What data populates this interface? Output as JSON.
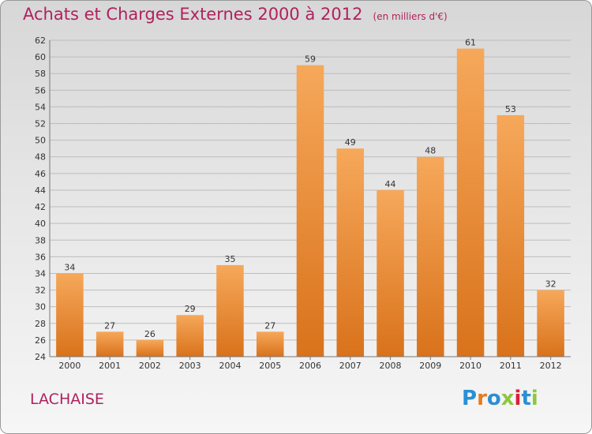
{
  "header": {
    "title": "Achats et Charges Externes 2000 à 2012",
    "subtitle": "(en milliers d'€)"
  },
  "footer": {
    "commune": "LACHAISE",
    "brand": "Proxiti"
  },
  "colors": {
    "title": "#b0225c",
    "bar_top": "#f6a85a",
    "bar_bottom": "#d9721b"
  },
  "chart_data": {
    "type": "bar",
    "title": "Achats et Charges Externes 2000 à 2012",
    "subtitle": "(en milliers d'€)",
    "categories": [
      "2000",
      "2001",
      "2002",
      "2003",
      "2004",
      "2005",
      "2006",
      "2007",
      "2008",
      "2009",
      "2010",
      "2011",
      "2012"
    ],
    "values": [
      34,
      27,
      26,
      29,
      35,
      27,
      59,
      49,
      44,
      48,
      61,
      53,
      32
    ],
    "ylim": [
      24,
      62
    ],
    "yticks": [
      24,
      26,
      28,
      30,
      32,
      34,
      36,
      38,
      40,
      42,
      44,
      46,
      48,
      50,
      52,
      54,
      56,
      58,
      60,
      62
    ],
    "grid": true,
    "data_labels": true,
    "xlabel": "",
    "ylabel": ""
  }
}
